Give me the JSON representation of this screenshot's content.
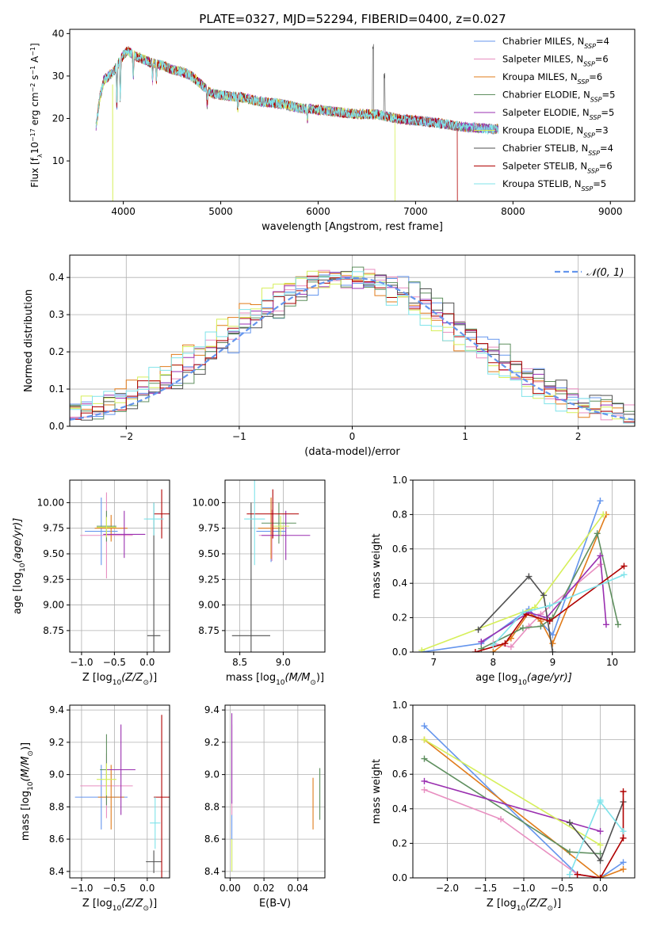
{
  "title": "PLATE=0327, MJD=52294, FIBERID=0400, z=0.027",
  "colors": [
    "#6495ed",
    "#e88ec0",
    "#e07b1a",
    "#5f8f5f",
    "#9a2fb0",
    "#d6ef5a",
    "#505050",
    "#b00000",
    "#7fe3ea"
  ],
  "legend": [
    {
      "pre": "Chabrier MILES, N",
      "sub": "SSP",
      "post": "=4"
    },
    {
      "pre": "Salpeter MILES, N",
      "sub": "SSP",
      "post": "=6"
    },
    {
      "pre": "Kroupa MILES, N",
      "sub": "SSP",
      "post": "=6"
    },
    {
      "pre": "Chabrier ELODIE, N",
      "sub": "SSP",
      "post": "=5"
    },
    {
      "pre": "Salpeter ELODIE, N",
      "sub": "SSP",
      "post": "=5"
    },
    {
      "pre": "Kroupa ELODIE, N",
      "sub": "SSP",
      "post": "=3"
    },
    {
      "pre": "Chabrier STELIB, N",
      "sub": "SSP",
      "post": "=4"
    },
    {
      "pre": "Salpeter STELIB, N",
      "sub": "SSP",
      "post": "=6"
    },
    {
      "pre": "Kroupa STELIB, N",
      "sub": "SSP",
      "post": "=5"
    }
  ],
  "chart_data": [
    {
      "id": "spectrum",
      "type": "line",
      "xlabel": "wavelength [Angstrom, rest frame]",
      "ylabel_pre": "Flux [f",
      "ylabel_sub": "λ",
      "ylabel_mid": "10",
      "ylabel_sup1": "−17",
      "ylabel_post": " erg cm",
      "ylabel_sup2": "−2",
      "ylabel_post2": " s",
      "ylabel_sup3": "−1",
      "ylabel_post3": " A",
      "ylabel_sup4": "−1",
      "ylabel_end": "]",
      "xlim": [
        3450,
        9250
      ],
      "ylim": [
        0.5,
        41
      ],
      "xticks": [
        4000,
        5000,
        6000,
        7000,
        8000,
        9000
      ],
      "yticks": [
        10,
        20,
        30,
        40
      ],
      "grid": false,
      "legend_position": "top-right",
      "continuum": [
        [
          3720,
          18
        ],
        [
          3760,
          25
        ],
        [
          3800,
          29
        ],
        [
          3850,
          30
        ],
        [
          3900,
          31
        ],
        [
          3950,
          33
        ],
        [
          4000,
          35
        ],
        [
          4050,
          36
        ],
        [
          4100,
          35
        ],
        [
          4200,
          34
        ],
        [
          4300,
          33
        ],
        [
          4400,
          32.5
        ],
        [
          4500,
          31.5
        ],
        [
          4600,
          31
        ],
        [
          4700,
          30
        ],
        [
          4800,
          28
        ],
        [
          4900,
          26
        ],
        [
          5000,
          25.5
        ],
        [
          5200,
          25
        ],
        [
          5400,
          24
        ],
        [
          5600,
          23.5
        ],
        [
          5800,
          22.5
        ],
        [
          6000,
          22
        ],
        [
          6200,
          21.5
        ],
        [
          6400,
          21
        ],
        [
          6600,
          21
        ],
        [
          6800,
          20
        ],
        [
          7000,
          19.5
        ],
        [
          7200,
          19
        ],
        [
          7500,
          18
        ],
        [
          7800,
          17.5
        ]
      ],
      "salpeter_stelib_end": 7430,
      "chabrier_stelib_end": 7830,
      "kroupa_elodie_end": 6790
    },
    {
      "id": "residuals",
      "type": "histogram",
      "xlabel": "(data-model)/error",
      "ylabel": "Normed distribution",
      "xlim": [
        -2.5,
        2.5
      ],
      "ylim": [
        0,
        0.46
      ],
      "xticks": [
        -2,
        -1,
        0,
        1,
        2
      ],
      "xticklabels": [
        "−2",
        "−1",
        "0",
        "1",
        "2"
      ],
      "yticks": [
        0.0,
        0.1,
        0.2,
        0.3,
        0.4
      ],
      "yticklabels": [
        "0.0",
        "0.1",
        "0.2",
        "0.3",
        "0.4"
      ],
      "grid": true,
      "legend_position": "top-right",
      "gauss_label": "𝒩(0, 1)",
      "bin_width": 0.1,
      "bin_start": -2.5
    },
    {
      "id": "age_z",
      "type": "errorbar",
      "xlabel_pre": "Z [log",
      "xlabel_sub": "10",
      "xlabel_post": "(Z/Z",
      "xlabel_end": ")]",
      "ylabel_pre": "age  [log",
      "ylabel_sub": "10",
      "ylabel_post": "(age/yr)]",
      "xlim": [
        -1.18,
        0.34
      ],
      "ylim": [
        8.54,
        10.22
      ],
      "xticks": [
        -1.0,
        -0.5,
        0.0
      ],
      "xticklabels": [
        "−1.0",
        "−0.5",
        "0.0"
      ],
      "yticks": [
        8.75,
        9.0,
        9.25,
        9.5,
        9.75,
        10.0
      ],
      "yticklabels": [
        "8.75",
        "9.00",
        "9.25",
        "9.50",
        "9.75",
        "10.00"
      ],
      "grid": true,
      "points": [
        {
          "x": -0.7,
          "xerr": 0.25,
          "y": 9.72,
          "yerr": 0.33
        },
        {
          "x": -0.62,
          "xerr": 0.4,
          "y": 9.68,
          "yerr": 0.42
        },
        {
          "x": -0.55,
          "xerr": 0.25,
          "y": 9.75,
          "yerr": 0.13
        },
        {
          "x": -0.62,
          "xerr": 0.15,
          "y": 9.77,
          "yerr": 0.15
        },
        {
          "x": -0.35,
          "xerr": 0.32,
          "y": 9.69,
          "yerr": 0.23
        },
        {
          "x": -0.62,
          "xerr": 0.15,
          "y": 9.76,
          "yerr": 0.1
        },
        {
          "x": 0.1,
          "xerr": 0.1,
          "y": 8.7,
          "yerr": 1.3
        },
        {
          "x": 0.22,
          "xerr": 0.12,
          "y": 9.89,
          "yerr": 0.24
        },
        {
          "x": 0.1,
          "xerr": 0.15,
          "y": 9.84,
          "yerr": 0.16
        }
      ]
    },
    {
      "id": "age_mass",
      "type": "errorbar",
      "xlabel_pre": "mass [log",
      "xlabel_sub": "10",
      "xlabel_post": "(M/M",
      "xlabel_end": ")]",
      "xlim": [
        8.33,
        9.48
      ],
      "ylim": [
        8.54,
        10.22
      ],
      "xticks": [
        8.5,
        9.0
      ],
      "xticklabels": [
        "8.5",
        "9.0"
      ],
      "yticks": [
        8.75,
        9.0,
        9.25,
        9.5,
        9.75,
        10.0
      ],
      "yticklabels": [
        "8.75",
        "9.00",
        "9.25",
        "9.50",
        "9.75",
        "10.00"
      ],
      "grid": true,
      "points": [
        {
          "x": 8.86,
          "xerr": 0.17,
          "y": 9.72,
          "yerr": 0.3
        },
        {
          "x": 8.87,
          "xerr": 0.15,
          "y": 9.68,
          "yerr": 0.25
        },
        {
          "x": 8.86,
          "xerr": 0.15,
          "y": 9.75,
          "yerr": 0.3
        },
        {
          "x": 8.95,
          "xerr": 0.2,
          "y": 9.8,
          "yerr": 0.2
        },
        {
          "x": 9.03,
          "xerr": 0.28,
          "y": 9.68,
          "yerr": 0.24
        },
        {
          "x": 8.97,
          "xerr": 0.1,
          "y": 9.77,
          "yerr": 0.1
        },
        {
          "x": 8.63,
          "xerr": 0.22,
          "y": 8.7,
          "yerr": 1.3
        },
        {
          "x": 8.88,
          "xerr": 0.3,
          "y": 9.89,
          "yerr": 0.24
        },
        {
          "x": 8.67,
          "xerr": 0.12,
          "y": 9.84,
          "yerr": 0.45
        }
      ]
    },
    {
      "id": "mw_age",
      "type": "line",
      "xlabel_pre": "age  [log",
      "xlabel_sub": "10",
      "xlabel_post": "(age/yr)]",
      "ylabel": "mass weight",
      "xlim": [
        6.65,
        10.38
      ],
      "ylim": [
        0,
        1
      ],
      "xticks": [
        7,
        8,
        9,
        10
      ],
      "xticklabels": [
        "7",
        "8",
        "9",
        "10"
      ],
      "yticks": [
        0.0,
        0.2,
        0.4,
        0.6,
        0.8,
        1.0
      ],
      "yticklabels": [
        "0.0",
        "0.2",
        "0.4",
        "0.6",
        "0.8",
        "1.0"
      ],
      "grid": true,
      "series": [
        {
          "x": [
            6.8,
            7.8,
            8.6,
            9.0,
            9.8
          ],
          "y": [
            0.0,
            0.05,
            0.25,
            0.1,
            0.88
          ]
        },
        {
          "x": [
            8.0,
            8.3,
            8.6,
            8.8,
            9.8
          ],
          "y": [
            0.05,
            0.03,
            0.15,
            0.22,
            0.51
          ]
        },
        {
          "x": [
            8.0,
            8.3,
            8.6,
            8.8,
            9.0,
            9.9
          ],
          "y": [
            0.0,
            0.08,
            0.23,
            0.18,
            0.05,
            0.8
          ]
        },
        {
          "x": [
            7.8,
            8.5,
            8.8,
            9.0,
            9.75,
            10.1
          ],
          "y": [
            0.02,
            0.14,
            0.15,
            0.2,
            0.69,
            0.16
          ]
        },
        {
          "x": [
            7.8,
            8.6,
            8.9,
            9.8,
            9.9
          ],
          "y": [
            0.06,
            0.23,
            0.2,
            0.56,
            0.16
          ]
        },
        {
          "x": [
            6.8,
            8.7,
            9.85
          ],
          "y": [
            0.01,
            0.26,
            0.8
          ]
        },
        {
          "x": [
            7.75,
            8.6,
            8.85,
            9.0
          ],
          "y": [
            0.13,
            0.44,
            0.33,
            0.0
          ]
        },
        {
          "x": [
            7.7,
            8.2,
            8.55,
            8.95,
            10.2
          ],
          "y": [
            0.0,
            0.05,
            0.22,
            0.18,
            0.5
          ]
        },
        {
          "x": [
            8.0,
            8.5,
            8.95,
            10.2
          ],
          "y": [
            0.04,
            0.23,
            0.27,
            0.45
          ]
        }
      ]
    },
    {
      "id": "mass_z",
      "type": "errorbar",
      "xlabel_pre": "Z [log",
      "xlabel_sub": "10",
      "xlabel_post": "(Z/Z",
      "xlabel_end": ")]",
      "ylabel_pre": "mass [log",
      "ylabel_sub": "10",
      "ylabel_post": "(M/M",
      "ylabel_end": ")]",
      "xlim": [
        -1.18,
        0.34
      ],
      "ylim": [
        8.36,
        9.43
      ],
      "xticks": [
        -1.0,
        -0.5,
        0.0
      ],
      "xticklabels": [
        "−1.0",
        "−0.5",
        "0.0"
      ],
      "yticks": [
        8.4,
        8.6,
        8.8,
        9.0,
        9.2,
        9.4
      ],
      "yticklabels": [
        "8.4",
        "8.6",
        "8.8",
        "9.0",
        "9.2",
        "9.4"
      ],
      "grid": true,
      "points": [
        {
          "x": -0.7,
          "xerr": 0.4,
          "y": 8.86,
          "yerr": 0.2
        },
        {
          "x": -0.62,
          "xerr": 0.4,
          "y": 8.93,
          "yerr": 0.2
        },
        {
          "x": -0.55,
          "xerr": 0.2,
          "y": 8.86,
          "yerr": 0.2
        },
        {
          "x": -0.62,
          "xerr": 0.1,
          "y": 9.03,
          "yerr": 0.22
        },
        {
          "x": -0.4,
          "xerr": 0.22,
          "y": 9.03,
          "yerr": 0.28
        },
        {
          "x": -0.62,
          "xerr": 0.15,
          "y": 8.97,
          "yerr": 0.1
        },
        {
          "x": 0.1,
          "xerr": 0.12,
          "y": 8.46,
          "yerr": 0.07
        },
        {
          "x": 0.22,
          "xerr": 0.12,
          "y": 8.86,
          "yerr": 0.51
        },
        {
          "x": 0.12,
          "xerr": 0.08,
          "y": 8.7,
          "yerr": 0.16
        }
      ]
    },
    {
      "id": "mass_ebv",
      "type": "errorbar",
      "xlabel": "E(B-V)",
      "xlim": [
        -0.003,
        0.056
      ],
      "ylim": [
        8.36,
        9.43
      ],
      "xticks": [
        0.0,
        0.02,
        0.04
      ],
      "xticklabels": [
        "0.00",
        "0.02",
        "0.04"
      ],
      "yticks": [
        8.4,
        8.6,
        8.8,
        9.0,
        9.2,
        9.4
      ],
      "yticklabels": [
        "8.4",
        "8.6",
        "8.8",
        "9.0",
        "9.2",
        "9.4"
      ],
      "grid": true,
      "points": [
        {
          "x": 0.001,
          "xerr": 0,
          "y": 8.6,
          "yerr": 0.2
        },
        {
          "x": 0.001,
          "xerr": 0,
          "y": 9.03,
          "yerr": 0.28
        },
        {
          "x": 0.049,
          "xerr": 0,
          "y": 8.82,
          "yerr": 0.16
        },
        {
          "x": 0.053,
          "xerr": 0,
          "y": 8.88,
          "yerr": 0.16
        },
        {
          "x": 0.001,
          "xerr": 0,
          "y": 9.1,
          "yerr": 0.28
        },
        {
          "x": 0.001,
          "xerr": 0,
          "y": 8.5,
          "yerr": 0.1
        }
      ]
    },
    {
      "id": "mw_z",
      "type": "line",
      "xlabel_pre": "Z [log",
      "xlabel_sub": "10",
      "xlabel_post": "(Z/Z",
      "xlabel_end": ")]",
      "ylabel": "mass weight",
      "xlim": [
        -2.45,
        0.45
      ],
      "ylim": [
        0,
        1
      ],
      "xticks": [
        -2.0,
        -1.5,
        -1.0,
        -0.5,
        0.0
      ],
      "xticklabels": [
        "−2.0",
        "−1.5",
        "−1.0",
        "−0.5",
        "0.0"
      ],
      "yticks": [
        0.0,
        0.2,
        0.4,
        0.6,
        0.8,
        1.0
      ],
      "yticklabels": [
        "0.0",
        "0.2",
        "0.4",
        "0.6",
        "0.8",
        "1.0"
      ],
      "grid": true,
      "series": [
        {
          "x": [
            -2.3,
            -0.3,
            0.0,
            0.3
          ],
          "y": [
            0.88,
            0.02,
            0.0,
            0.09
          ]
        },
        {
          "x": [
            -2.3,
            -1.3,
            -0.3,
            0.0
          ],
          "y": [
            0.51,
            0.34,
            0.02,
            0.0
          ]
        },
        {
          "x": [
            -2.3,
            0.0,
            0.3
          ],
          "y": [
            0.8,
            0.0,
            0.05
          ]
        },
        {
          "x": [
            -2.3,
            -0.4,
            0.0
          ],
          "y": [
            0.69,
            0.15,
            0.14
          ]
        },
        {
          "x": [
            -2.3,
            0.0
          ],
          "y": [
            0.56,
            0.27
          ]
        },
        {
          "x": [
            -2.3,
            0.0
          ],
          "y": [
            0.8,
            0.19
          ]
        },
        {
          "x": [
            -0.4,
            0.0,
            0.3
          ],
          "y": [
            0.32,
            0.1,
            0.44
          ]
        },
        {
          "x": [
            -0.3,
            0.0,
            0.3,
            0.3
          ],
          "y": [
            0.02,
            0.0,
            0.23,
            0.5
          ]
        },
        {
          "x": [
            -0.4,
            0.0,
            0.0,
            0.3
          ],
          "y": [
            0.02,
            0.45,
            0.44,
            0.27
          ]
        }
      ]
    }
  ]
}
